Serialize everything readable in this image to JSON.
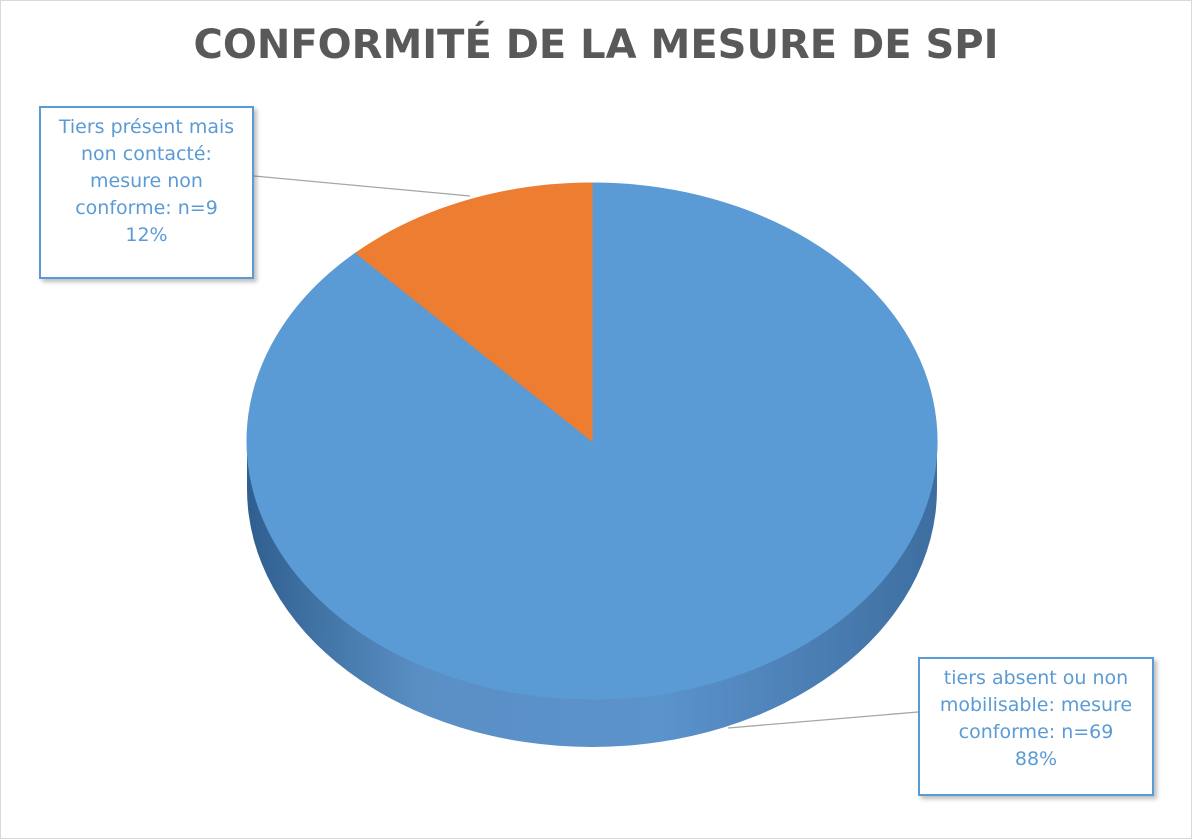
{
  "chart_data": {
    "type": "pie",
    "title": "CONFORMITÉ DE LA MESURE DE SPI",
    "categories": [
      "tiers absent ou non mobilisable: mesure conforme: n=69",
      "Tiers présent mais non contacté: mesure non conforme: n=9"
    ],
    "values": [
      88,
      12
    ],
    "value_labels": [
      "88%",
      "12%"
    ],
    "colors": [
      "#5b9bd5",
      "#ed7d31"
    ]
  }
}
